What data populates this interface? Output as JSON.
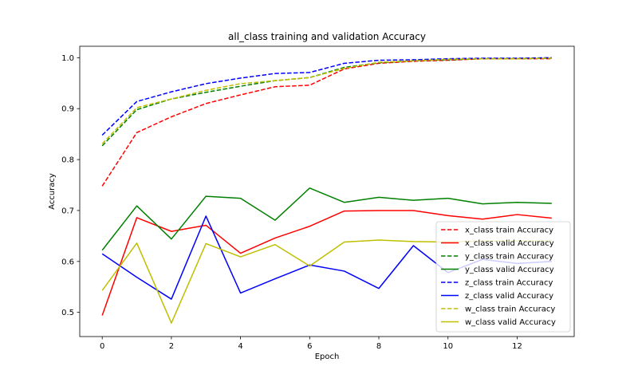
{
  "chart_data": {
    "type": "line",
    "title": "all_class training and validation Accuracy",
    "xlabel": "Epoch",
    "ylabel": "Accuracy",
    "xlim": [
      -0.65,
      13.65
    ],
    "ylim": [
      0.4525,
      1.0225
    ],
    "xticks": [
      0,
      2,
      4,
      6,
      8,
      10,
      12
    ],
    "yticks": [
      0.5,
      0.6,
      0.7,
      0.8,
      0.9,
      1.0
    ],
    "ytick_labels": [
      "0.5",
      "0.6",
      "0.7",
      "0.8",
      "0.9",
      "1.0"
    ],
    "legend_position": "lower right",
    "x": [
      0,
      1,
      2,
      3,
      4,
      5,
      6,
      7,
      8,
      9,
      10,
      11,
      12,
      13
    ],
    "series": [
      {
        "name": "x_class train Accuracy",
        "color": "#ff0000",
        "style": "dashed",
        "values": [
          0.748,
          0.853,
          0.884,
          0.91,
          0.927,
          0.943,
          0.946,
          0.978,
          0.989,
          0.993,
          0.995,
          0.998,
          0.998,
          0.998
        ]
      },
      {
        "name": "x_class valid Accuracy",
        "color": "#ff0000",
        "style": "solid",
        "values": [
          0.494,
          0.686,
          0.659,
          0.671,
          0.616,
          0.646,
          0.669,
          0.699,
          0.7,
          0.7,
          0.69,
          0.683,
          0.692,
          0.685
        ]
      },
      {
        "name": "y_class train Accuracy",
        "color": "#008000",
        "style": "dashed",
        "values": [
          0.827,
          0.898,
          0.919,
          0.932,
          0.944,
          0.955,
          0.961,
          0.981,
          0.99,
          0.994,
          0.996,
          0.998,
          0.998,
          0.999
        ]
      },
      {
        "name": "y_class valid Accuracy",
        "color": "#008000",
        "style": "solid",
        "values": [
          0.622,
          0.709,
          0.644,
          0.728,
          0.724,
          0.681,
          0.744,
          0.716,
          0.726,
          0.72,
          0.724,
          0.713,
          0.716,
          0.714
        ]
      },
      {
        "name": "z_class train Accuracy",
        "color": "#0000ff",
        "style": "dashed",
        "values": [
          0.848,
          0.914,
          0.933,
          0.949,
          0.96,
          0.969,
          0.971,
          0.989,
          0.995,
          0.996,
          0.998,
          0.999,
          0.999,
          1.0
        ]
      },
      {
        "name": "z_class valid Accuracy",
        "color": "#0000ff",
        "style": "solid",
        "values": [
          0.615,
          0.569,
          0.526,
          0.689,
          0.538,
          0.566,
          0.593,
          0.581,
          0.547,
          0.631,
          0.578,
          0.604,
          0.596,
          0.6
        ]
      },
      {
        "name": "w_class train Accuracy",
        "color": "#bfbf00",
        "style": "dashed",
        "values": [
          0.831,
          0.902,
          0.919,
          0.936,
          0.949,
          0.955,
          0.961,
          0.979,
          0.991,
          0.994,
          0.997,
          0.998,
          0.998,
          0.999
        ]
      },
      {
        "name": "w_class valid Accuracy",
        "color": "#bfbf00",
        "style": "solid",
        "values": [
          0.543,
          0.636,
          0.479,
          0.635,
          0.609,
          0.633,
          0.591,
          0.638,
          0.642,
          0.639,
          0.638,
          0.64,
          0.64,
          0.64
        ]
      }
    ]
  }
}
